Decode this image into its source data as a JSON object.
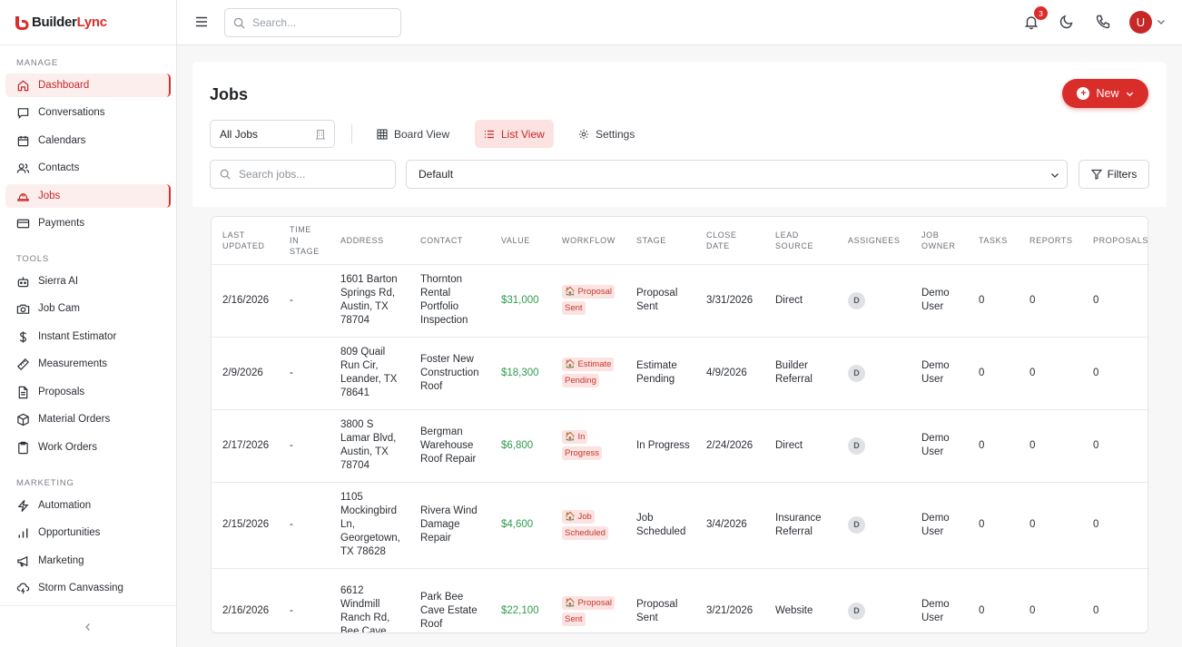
{
  "brand": {
    "name_part1": "Builder",
    "name_part2": "Lync",
    "brand_color": "#d92d2a"
  },
  "sidebar": {
    "sections": [
      {
        "title": "MANAGE",
        "items": [
          {
            "label": "Dashboard",
            "icon": "home-icon",
            "active": true
          },
          {
            "label": "Conversations",
            "icon": "chat-icon"
          },
          {
            "label": "Calendars",
            "icon": "calendar-icon"
          },
          {
            "label": "Contacts",
            "icon": "users-icon"
          },
          {
            "label": "Jobs",
            "icon": "hardhat-icon",
            "active": true
          },
          {
            "label": "Payments",
            "icon": "credit-card-icon"
          }
        ]
      },
      {
        "title": "TOOLS",
        "items": [
          {
            "label": "Sierra AI",
            "icon": "robot-icon"
          },
          {
            "label": "Job Cam",
            "icon": "camera-icon"
          },
          {
            "label": "Instant Estimator",
            "icon": "dollar-icon"
          },
          {
            "label": "Measurements",
            "icon": "ruler-icon"
          },
          {
            "label": "Proposals",
            "icon": "document-icon"
          },
          {
            "label": "Material Orders",
            "icon": "package-icon"
          },
          {
            "label": "Work Orders",
            "icon": "clipboard-icon"
          }
        ]
      },
      {
        "title": "MARKETING",
        "items": [
          {
            "label": "Automation",
            "icon": "bolt-icon"
          },
          {
            "label": "Opportunities",
            "icon": "bar-chart-icon"
          },
          {
            "label": "Marketing",
            "icon": "megaphone-icon"
          },
          {
            "label": "Storm Canvassing",
            "icon": "cloud-lightning-icon"
          }
        ]
      }
    ],
    "collapse_icon": "chevron-left-icon"
  },
  "topbar": {
    "search_placeholder": "Search...",
    "notification_count": "3",
    "avatar_initial": "U"
  },
  "page": {
    "title": "Jobs",
    "new_button": "New",
    "jobs_filter": "All Jobs",
    "tabs": {
      "board": "Board View",
      "list": "List View",
      "settings": "Settings"
    },
    "active_tab": "list",
    "search_jobs_placeholder": "Search jobs...",
    "sort_value": "Default",
    "filters_button": "Filters"
  },
  "table": {
    "headers": {
      "last_updated": "LAST UPDATED",
      "time_in_stage": "TIME IN STAGE",
      "address": "ADDRESS",
      "contact": "CONTACT",
      "value": "VALUE",
      "workflow": "WORKFLOW",
      "stage": "STAGE",
      "close_date": "CLOSE DATE",
      "lead_source": "LEAD SOURCE",
      "assignees": "ASSIGNEES",
      "job_owner": "JOB OWNER",
      "tasks": "TASKS",
      "reports": "REPORTS",
      "proposals": "PROPOSALS"
    },
    "rows": [
      {
        "last_updated": "2/16/2026",
        "time_in_stage": "-",
        "address": "1601 Barton Springs Rd, Austin, TX 78704",
        "contact": "Thornton Rental Portfolio Inspection",
        "value": "$31,000",
        "workflow": "🏠 Proposal Sent",
        "stage": "Proposal Sent",
        "close_date": "3/31/2026",
        "lead_source": "Direct",
        "assignee": "D",
        "job_owner": "Demo User",
        "tasks": "0",
        "reports": "0",
        "proposals": "0"
      },
      {
        "last_updated": "2/9/2026",
        "time_in_stage": "-",
        "address": "809 Quail Run Cir, Leander, TX 78641",
        "contact": "Foster New Construction Roof",
        "value": "$18,300",
        "workflow": "🏠 Estimate Pending",
        "stage": "Estimate Pending",
        "close_date": "4/9/2026",
        "lead_source": "Builder Referral",
        "assignee": "D",
        "job_owner": "Demo User",
        "tasks": "0",
        "reports": "0",
        "proposals": "0"
      },
      {
        "last_updated": "2/17/2026",
        "time_in_stage": "-",
        "address": "3800 S Lamar Blvd, Austin, TX 78704",
        "contact": "Bergman Warehouse Roof Repair",
        "value": "$6,800",
        "workflow": "🏠 In Progress",
        "stage": "In Progress",
        "close_date": "2/24/2026",
        "lead_source": "Direct",
        "assignee": "D",
        "job_owner": "Demo User",
        "tasks": "0",
        "reports": "0",
        "proposals": "0"
      },
      {
        "last_updated": "2/15/2026",
        "time_in_stage": "-",
        "address": "1105 Mockingbird Ln, Georgetown, TX 78628",
        "contact": "Rivera Wind Damage Repair",
        "value": "$4,600",
        "workflow": "🏠 Job Scheduled",
        "stage": "Job Scheduled",
        "close_date": "3/4/2026",
        "lead_source": "Insurance Referral",
        "assignee": "D",
        "job_owner": "Demo User",
        "tasks": "0",
        "reports": "0",
        "proposals": "0"
      },
      {
        "last_updated": "2/16/2026",
        "time_in_stage": "-",
        "address": "6612 Windmill Ranch Rd, Bee Cave,",
        "contact": "Park Bee Cave Estate Roof",
        "value": "$22,100",
        "workflow": "🏠 Proposal Sent",
        "stage": "Proposal Sent",
        "close_date": "3/21/2026",
        "lead_source": "Website",
        "assignee": "D",
        "job_owner": "Demo User",
        "tasks": "0",
        "reports": "0",
        "proposals": "0"
      }
    ]
  }
}
